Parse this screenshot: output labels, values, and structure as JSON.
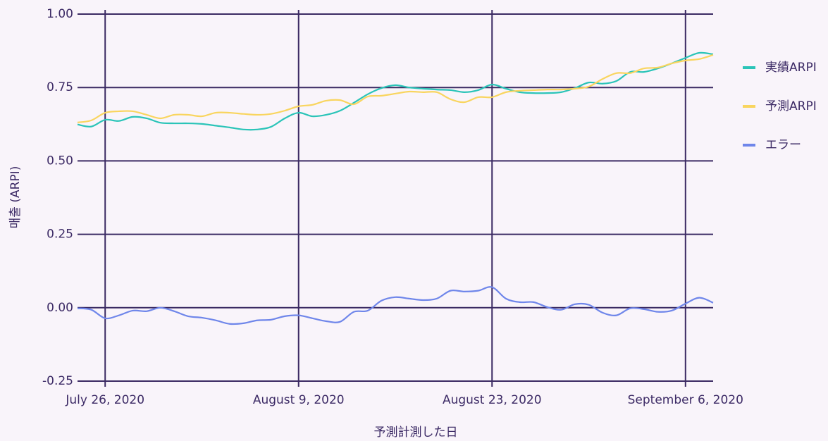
{
  "chart_data": {
    "type": "line",
    "xlabel": "予測計測した日",
    "ylabel": "매출 (ARPI)",
    "x": [
      "2020-07-24",
      "2020-07-25",
      "2020-07-26",
      "2020-07-27",
      "2020-07-28",
      "2020-07-29",
      "2020-07-30",
      "2020-07-31",
      "2020-08-01",
      "2020-08-02",
      "2020-08-03",
      "2020-08-04",
      "2020-08-05",
      "2020-08-06",
      "2020-08-07",
      "2020-08-08",
      "2020-08-09",
      "2020-08-10",
      "2020-08-11",
      "2020-08-12",
      "2020-08-13",
      "2020-08-14",
      "2020-08-15",
      "2020-08-16",
      "2020-08-17",
      "2020-08-18",
      "2020-08-19",
      "2020-08-20",
      "2020-08-21",
      "2020-08-22",
      "2020-08-23",
      "2020-08-24",
      "2020-08-25",
      "2020-08-26",
      "2020-08-27",
      "2020-08-28",
      "2020-08-29",
      "2020-08-30",
      "2020-08-31",
      "2020-09-01",
      "2020-09-02",
      "2020-09-03",
      "2020-09-04",
      "2020-09-05",
      "2020-09-06",
      "2020-09-07",
      "2020-09-08"
    ],
    "series": [
      {
        "name": "実績ARPI",
        "color": "#2bc4b8",
        "values": [
          0.624,
          0.617,
          0.64,
          0.636,
          0.65,
          0.645,
          0.63,
          0.628,
          0.628,
          0.626,
          0.62,
          0.614,
          0.607,
          0.607,
          0.616,
          0.645,
          0.664,
          0.652,
          0.657,
          0.671,
          0.698,
          0.727,
          0.748,
          0.758,
          0.75,
          0.746,
          0.743,
          0.741,
          0.734,
          0.741,
          0.76,
          0.746,
          0.734,
          0.731,
          0.731,
          0.734,
          0.748,
          0.767,
          0.763,
          0.772,
          0.803,
          0.803,
          0.815,
          0.832,
          0.851,
          0.868,
          0.863
        ]
      },
      {
        "name": "予測ARPI",
        "color": "#f9d55f",
        "values": [
          0.631,
          0.638,
          0.664,
          0.669,
          0.669,
          0.657,
          0.645,
          0.657,
          0.657,
          0.652,
          0.664,
          0.664,
          0.66,
          0.657,
          0.66,
          0.671,
          0.686,
          0.691,
          0.705,
          0.707,
          0.693,
          0.719,
          0.722,
          0.729,
          0.736,
          0.734,
          0.734,
          0.71,
          0.7,
          0.717,
          0.717,
          0.734,
          0.739,
          0.741,
          0.743,
          0.743,
          0.746,
          0.753,
          0.779,
          0.799,
          0.799,
          0.815,
          0.818,
          0.832,
          0.842,
          0.847,
          0.861
        ]
      },
      {
        "name": "エラー",
        "color": "#6f86ea",
        "values": [
          -0.002,
          -0.007,
          -0.036,
          -0.026,
          -0.01,
          -0.012,
          0,
          -0.012,
          -0.029,
          -0.034,
          -0.043,
          -0.055,
          -0.053,
          -0.043,
          -0.041,
          -0.029,
          -0.026,
          -0.036,
          -0.046,
          -0.048,
          -0.014,
          -0.01,
          0.024,
          0.036,
          0.031,
          0.026,
          0.031,
          0.058,
          0.055,
          0.058,
          0.07,
          0.031,
          0.019,
          0.019,
          0.002,
          -0.007,
          0.012,
          0.01,
          -0.017,
          -0.026,
          -0.002,
          -0.005,
          -0.014,
          -0.01,
          0.014,
          0.034,
          0.017
        ]
      }
    ],
    "xlim": [
      "2020-07-24",
      "2020-09-08"
    ],
    "xticks": [
      {
        "value": "2020-07-26",
        "label": "July 26, 2020"
      },
      {
        "value": "2020-08-09",
        "label": "August 9, 2020"
      },
      {
        "value": "2020-08-23",
        "label": "August 23, 2020"
      },
      {
        "value": "2020-09-06",
        "label": "September 6, 2020"
      }
    ],
    "ylim": [
      -0.25,
      1
    ],
    "yticks": [
      {
        "value": 1,
        "label": "1.00"
      },
      0.75,
      {
        "value": 0.5,
        "label": "0.50"
      },
      0.25,
      {
        "value": 0,
        "label": "0.00"
      },
      -0.25
    ],
    "grid": true,
    "legend": "right"
  }
}
